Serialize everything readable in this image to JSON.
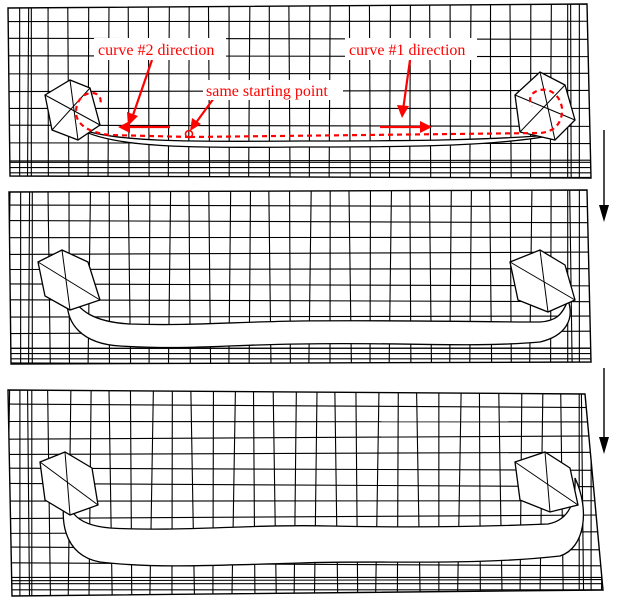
{
  "annotations": {
    "curve2_label": "curve #2 direction",
    "curve1_label": "curve #1 direction",
    "start_label": "same starting point"
  },
  "colors": {
    "annotation": "#ff0000",
    "mesh": "#000000",
    "background": "#ffffff"
  },
  "stages": [
    {
      "name": "initial-mesh",
      "hole": "thin-slit"
    },
    {
      "name": "intermediate-mesh",
      "hole": "opened-channel"
    },
    {
      "name": "final-mesh",
      "hole": "wide-channel"
    }
  ]
}
